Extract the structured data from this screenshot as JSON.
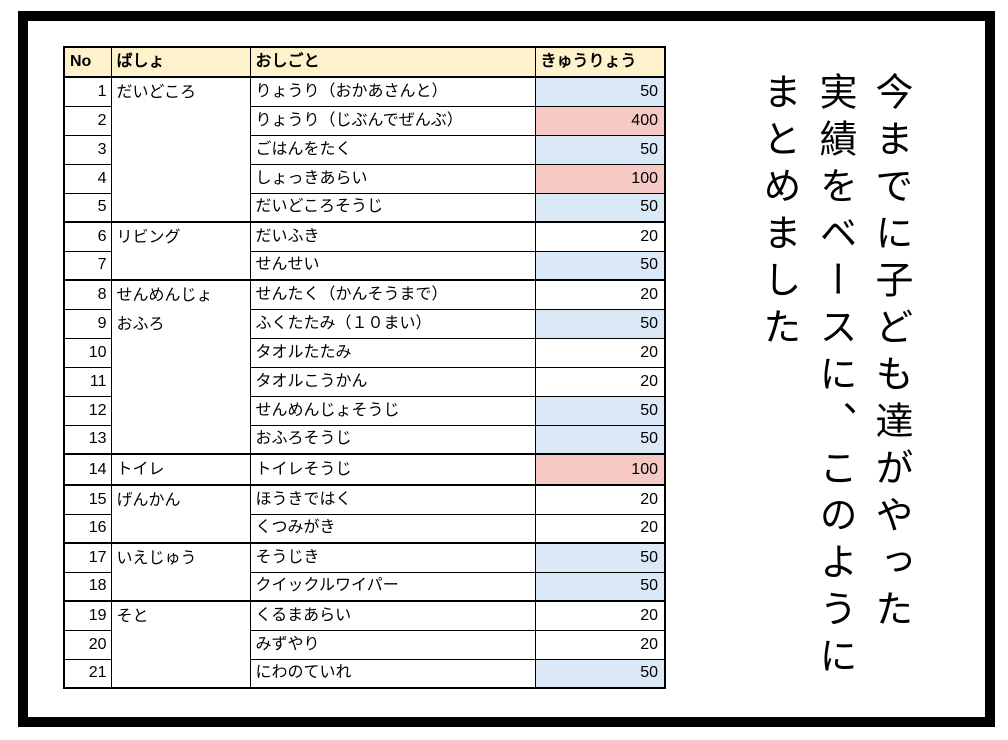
{
  "narration": {
    "lines": [
      "今までに子ども達がやった",
      "実績をベースに、このように",
      "まとめました"
    ]
  },
  "table": {
    "headers": [
      "No",
      "ばしょ",
      "おしごと",
      "きゅうりょう"
    ],
    "colors": {
      "header_bg": "#FDF2CC",
      "pay_blue": "#DBE8F5",
      "pay_red": "#F7C9C5",
      "border": "#000000",
      "frame": "#000000"
    },
    "rows": [
      {
        "no": "1",
        "place": "だいどころ",
        "task": "りょうり（おかあさんと）",
        "pay": "50",
        "highlight": "blue"
      },
      {
        "no": "2",
        "task": "りょうり（じぶんでぜんぶ）",
        "pay": "400",
        "highlight": "red"
      },
      {
        "no": "3",
        "task": "ごはんをたく",
        "pay": "50",
        "highlight": "blue"
      },
      {
        "no": "4",
        "task": "しょっきあらい",
        "pay": "100",
        "highlight": "red"
      },
      {
        "no": "5",
        "task": "だいどころそうじ",
        "pay": "50",
        "highlight": "blue"
      },
      {
        "no": "6",
        "place": "リビング",
        "task": "だいふき",
        "pay": "20",
        "highlight": "none"
      },
      {
        "no": "7",
        "task": "せんせい",
        "pay": "50",
        "highlight": "blue"
      },
      {
        "no": "8",
        "place": "せんめんじょ",
        "place2": "おふろ",
        "task": "せんたく（かんそうまで）",
        "pay": "20",
        "highlight": "none"
      },
      {
        "no": "9",
        "task": "ふくたたみ（１０まい）",
        "pay": "50",
        "highlight": "blue"
      },
      {
        "no": "10",
        "task": "タオルたたみ",
        "pay": "20",
        "highlight": "none"
      },
      {
        "no": "11",
        "task": "タオルこうかん",
        "pay": "20",
        "highlight": "none"
      },
      {
        "no": "12",
        "task": "せんめんじょそうじ",
        "pay": "50",
        "highlight": "blue"
      },
      {
        "no": "13",
        "task": "おふろそうじ",
        "pay": "50",
        "highlight": "blue"
      },
      {
        "no": "14",
        "place": "トイレ",
        "task": "トイレそうじ",
        "pay": "100",
        "highlight": "red"
      },
      {
        "no": "15",
        "place": "げんかん",
        "task": "ほうきではく",
        "pay": "20",
        "highlight": "none"
      },
      {
        "no": "16",
        "task": "くつみがき",
        "pay": "20",
        "highlight": "none"
      },
      {
        "no": "17",
        "place": "いえじゅう",
        "task": "そうじき",
        "pay": "50",
        "highlight": "blue"
      },
      {
        "no": "18",
        "task": "クイックルワイパー",
        "pay": "50",
        "highlight": "blue"
      },
      {
        "no": "19",
        "place": "そと",
        "task": "くるまあらい",
        "pay": "20",
        "highlight": "none"
      },
      {
        "no": "20",
        "task": "みずやり",
        "pay": "20",
        "highlight": "none"
      },
      {
        "no": "21",
        "task": "にわのていれ",
        "pay": "50",
        "highlight": "blue"
      }
    ]
  }
}
